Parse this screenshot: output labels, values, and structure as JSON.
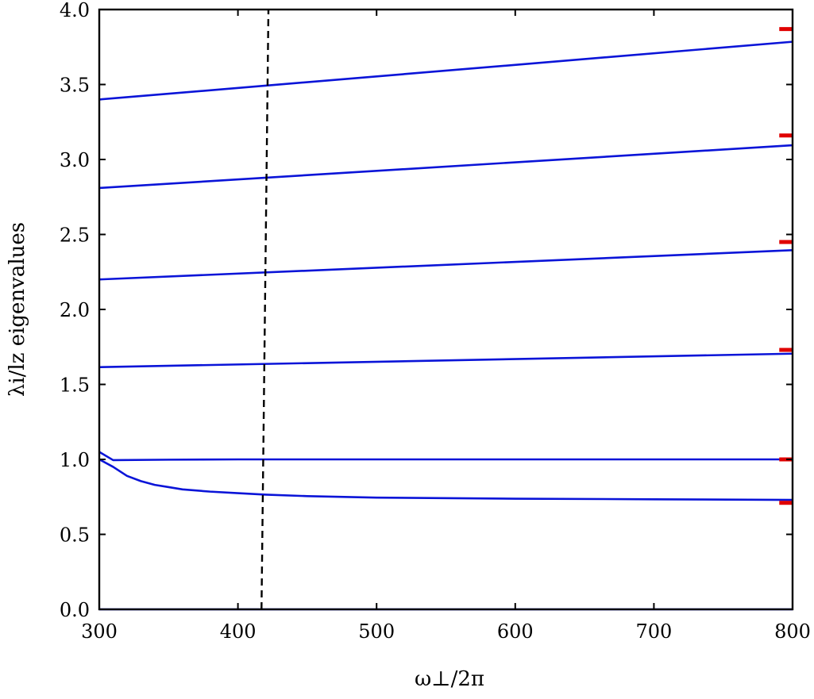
{
  "chart_data": {
    "type": "line",
    "title": "",
    "xlabel": "ω⊥/2π",
    "ylabel": "λi/lz eigenvalues",
    "xlim": [
      300,
      800
    ],
    "ylim": [
      0.0,
      4.0
    ],
    "x_ticks": [
      300,
      400,
      500,
      600,
      700,
      800
    ],
    "y_ticks": [
      0.0,
      0.5,
      1.0,
      1.5,
      2.0,
      2.5,
      3.0,
      3.5,
      4.0
    ],
    "x_tick_labels": [
      "300",
      "400",
      "500",
      "600",
      "700",
      "800"
    ],
    "y_tick_labels": [
      "0.0",
      "0.5",
      "1.0",
      "1.5",
      "2.0",
      "2.5",
      "3.0",
      "3.5",
      "4.0"
    ],
    "grid": false,
    "line_color": "#0a14d8",
    "series": [
      {
        "x": [
          300,
          800
        ],
        "y": [
          0.0,
          0.0
        ]
      },
      {
        "x": [
          300,
          310,
          320,
          330,
          340,
          350,
          360,
          380,
          400,
          420,
          450,
          500,
          600,
          700,
          800
        ],
        "y": [
          1.0,
          0.95,
          0.89,
          0.855,
          0.83,
          0.815,
          0.8,
          0.785,
          0.775,
          0.765,
          0.755,
          0.745,
          0.738,
          0.734,
          0.73
        ]
      },
      {
        "x": [
          300,
          310,
          350,
          400,
          500,
          600,
          700,
          800
        ],
        "y": [
          1.05,
          0.995,
          0.998,
          1.0,
          1.0,
          1.0,
          1.0,
          1.0
        ]
      },
      {
        "x": [
          300,
          800
        ],
        "y": [
          1.615,
          1.705
        ]
      },
      {
        "x": [
          300,
          800
        ],
        "y": [
          2.2,
          2.395
        ]
      },
      {
        "x": [
          300,
          800
        ],
        "y": [
          2.81,
          3.095
        ]
      },
      {
        "x": [
          300,
          800
        ],
        "y": [
          3.4,
          3.785
        ]
      }
    ],
    "reference_line": {
      "style": "dashed",
      "color": "#000000",
      "x_bottom": 417,
      "x_top": 422
    },
    "markers": {
      "color": "#e00000",
      "x": 795,
      "y": [
        0.71,
        1.0,
        1.73,
        2.45,
        3.16,
        3.87
      ]
    }
  }
}
